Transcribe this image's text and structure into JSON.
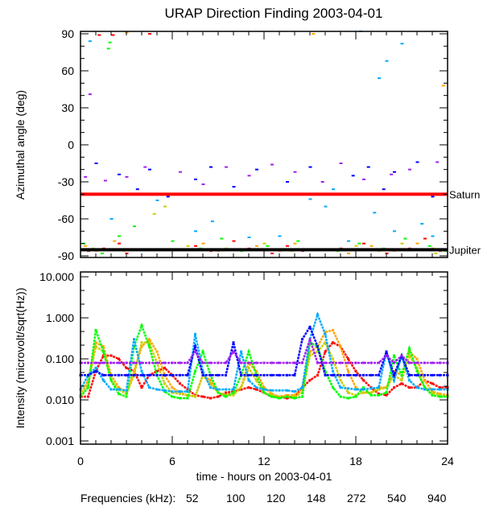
{
  "chart_data": [
    {
      "type": "scatter",
      "title": "URAP Direction Finding  2003-04-01",
      "ylabel": "Azimuthal angle (deg)",
      "ylim": [
        -90,
        90
      ],
      "xlim": [
        0,
        24
      ],
      "yticks": [
        "90",
        "60",
        "30",
        "0",
        "-30",
        "-60",
        "-90"
      ],
      "ytick_values": [
        90,
        60,
        30,
        0,
        -30,
        -60,
        -90
      ],
      "reference_lines": [
        {
          "name": "Saturn",
          "value": -40,
          "color": "#ff0000"
        },
        {
          "name": "Jupiter",
          "value": -85,
          "color": "#000000"
        }
      ],
      "series": [
        {
          "name": "52",
          "color": "#ff0000",
          "points": [
            [
              0.5,
              -86
            ],
            [
              1.5,
              -84
            ],
            [
              2.5,
              -80
            ],
            [
              3,
              -88
            ],
            [
              7.5,
              -82
            ],
            [
              8.5,
              -86
            ],
            [
              10,
              -78
            ],
            [
              11,
              -84
            ],
            [
              12.5,
              -88
            ],
            [
              13.5,
              -82
            ],
            [
              14.5,
              -86
            ],
            [
              17,
              -84
            ],
            [
              18.5,
              -80
            ],
            [
              20,
              -88
            ],
            [
              21.5,
              -84
            ],
            [
              22.5,
              -76
            ],
            [
              23.5,
              -86
            ],
            [
              1.2,
              89
            ],
            [
              2.1,
              89
            ],
            [
              4.5,
              90
            ]
          ]
        },
        {
          "name": "100",
          "color": "#ffa500",
          "points": [
            [
              0.3,
              -82
            ],
            [
              1,
              -86
            ],
            [
              2.2,
              -78
            ],
            [
              8,
              -80
            ],
            [
              9,
              -86
            ],
            [
              11.5,
              -82
            ],
            [
              13,
              -86
            ],
            [
              14,
              -80
            ],
            [
              17.5,
              -88
            ],
            [
              19,
              -82
            ],
            [
              20.5,
              -86
            ],
            [
              22,
              -80
            ],
            [
              23,
              -84
            ],
            [
              3,
              91
            ],
            [
              15.2,
              90
            ],
            [
              23.7,
              48
            ]
          ]
        },
        {
          "name": "120",
          "color": "#cccc00",
          "points": [
            [
              0.8,
              -84
            ],
            [
              2.8,
              -86
            ],
            [
              5.5,
              -50
            ],
            [
              7,
              -82
            ],
            [
              9.5,
              -84
            ],
            [
              12,
              -80
            ],
            [
              13.8,
              -86
            ],
            [
              18,
              -82
            ],
            [
              19.5,
              -86
            ],
            [
              21,
              -80
            ],
            [
              23.2,
              -88
            ],
            [
              4.8,
              -56
            ]
          ]
        },
        {
          "name": "148",
          "color": "#00ff00",
          "points": [
            [
              0.2,
              -80
            ],
            [
              1.4,
              -88
            ],
            [
              2.5,
              -74
            ],
            [
              3.5,
              -66
            ],
            [
              6,
              -78
            ],
            [
              7.8,
              -84
            ],
            [
              9.2,
              -76
            ],
            [
              10.5,
              -86
            ],
            [
              12.2,
              -82
            ],
            [
              14.2,
              -78
            ],
            [
              16.8,
              -86
            ],
            [
              18.2,
              -80
            ],
            [
              19.8,
              -84
            ],
            [
              21.2,
              -76
            ],
            [
              22.8,
              -82
            ],
            [
              23.8,
              -86
            ],
            [
              1.8,
              78
            ],
            [
              1.9,
              83
            ]
          ]
        },
        {
          "name": "272",
          "color": "#00aaff",
          "points": [
            [
              0.6,
              84
            ],
            [
              2,
              -60
            ],
            [
              3.2,
              -40
            ],
            [
              5,
              -45
            ],
            [
              7.5,
              -70
            ],
            [
              8.6,
              -62
            ],
            [
              11,
              -75
            ],
            [
              13,
              -74
            ],
            [
              15,
              -44
            ],
            [
              16,
              -50
            ],
            [
              16.5,
              -36
            ],
            [
              17.5,
              -78
            ],
            [
              19.2,
              -55
            ],
            [
              20.5,
              -70
            ],
            [
              22.3,
              -64
            ],
            [
              23,
              -74
            ],
            [
              18.3,
              92
            ],
            [
              20,
              68
            ],
            [
              21,
              82
            ],
            [
              19.5,
              54
            ]
          ]
        },
        {
          "name": "540",
          "color": "#0000ff",
          "points": [
            [
              1,
              -15
            ],
            [
              2.5,
              -24
            ],
            [
              3.7,
              -36
            ],
            [
              4.5,
              -20
            ],
            [
              5.7,
              -42
            ],
            [
              7.5,
              -28
            ],
            [
              8.5,
              -18
            ],
            [
              10,
              -34
            ],
            [
              11.5,
              -20
            ],
            [
              13.5,
              -30
            ],
            [
              15,
              -18
            ],
            [
              16.5,
              -40
            ],
            [
              17.8,
              -25
            ],
            [
              18.8,
              -18
            ],
            [
              19.8,
              -36
            ],
            [
              20.5,
              -22
            ],
            [
              22,
              -14
            ],
            [
              23,
              -42
            ]
          ]
        },
        {
          "name": "940",
          "color": "#a020f0",
          "points": [
            [
              0.3,
              -26
            ],
            [
              1.6,
              -29
            ],
            [
              3,
              -26
            ],
            [
              4.2,
              -18
            ],
            [
              6.5,
              -22
            ],
            [
              8,
              -32
            ],
            [
              9.5,
              -18
            ],
            [
              11,
              -25
            ],
            [
              12.5,
              -16
            ],
            [
              14,
              -22
            ],
            [
              15.8,
              -30
            ],
            [
              17,
              -15
            ],
            [
              18.5,
              -28
            ],
            [
              20.3,
              -24
            ],
            [
              21.5,
              -20
            ],
            [
              23.3,
              -14
            ],
            [
              0.6,
              41
            ]
          ]
        }
      ]
    },
    {
      "type": "line",
      "ylabel": "Intensity (microvolt/sqrt(Hz))",
      "yscale": "log",
      "ylim": [
        0.001,
        10
      ],
      "xlim": [
        0,
        24
      ],
      "yticks": [
        "10.000",
        "1.000",
        "0.100",
        "0.010",
        "0.001"
      ],
      "ytick_values": [
        10,
        1,
        0.1,
        0.01,
        0.001
      ],
      "xlabel": "time - hours on 2003-04-01",
      "xticks": [
        "0",
        "6",
        "12",
        "18",
        "24"
      ],
      "xtick_values": [
        0,
        6,
        12,
        18,
        24
      ],
      "x_step_hours": 0.5,
      "series": [
        {
          "name": "52",
          "color": "#ff0000",
          "values": [
            0.012,
            0.012,
            0.05,
            0.12,
            0.12,
            0.1,
            0.06,
            0.05,
            0.02,
            0.04,
            0.05,
            0.06,
            0.04,
            0.025,
            0.018,
            0.013,
            0.012,
            0.011,
            0.012,
            0.015,
            0.016,
            0.018,
            0.02,
            0.018,
            0.015,
            0.012,
            0.012,
            0.011,
            0.012,
            0.02,
            0.03,
            0.04,
            0.15,
            0.25,
            0.2,
            0.1,
            0.05,
            0.03,
            0.02,
            0.014,
            0.013,
            0.02,
            0.025,
            0.02,
            0.02,
            0.03,
            0.025,
            0.02,
            0.02
          ]
        },
        {
          "name": "100",
          "color": "#ffa500",
          "values": [
            0.013,
            0.03,
            0.25,
            0.2,
            0.04,
            0.02,
            0.015,
            0.05,
            0.2,
            0.3,
            0.15,
            0.04,
            0.02,
            0.015,
            0.013,
            0.012,
            0.04,
            0.03,
            0.015,
            0.013,
            0.015,
            0.02,
            0.08,
            0.05,
            0.02,
            0.014,
            0.012,
            0.013,
            0.013,
            0.02,
            0.15,
            0.2,
            0.45,
            0.5,
            0.2,
            0.05,
            0.02,
            0.015,
            0.015,
            0.02,
            0.02,
            0.05,
            0.04,
            0.15,
            0.1,
            0.03,
            0.016,
            0.014,
            0.013
          ]
        },
        {
          "name": "120",
          "color": "#cccc00",
          "values": [
            0.013,
            0.025,
            0.2,
            0.15,
            0.03,
            0.018,
            0.014,
            0.04,
            0.25,
            0.25,
            0.08,
            0.025,
            0.015,
            0.014,
            0.013,
            0.012,
            0.04,
            0.025,
            0.015,
            0.013,
            0.013,
            0.02,
            0.06,
            0.03,
            0.015,
            0.013,
            0.012,
            0.012,
            0.012,
            0.015,
            0.12,
            0.15,
            0.25,
            0.1,
            0.03,
            0.015,
            0.013,
            0.015,
            0.015,
            0.018,
            0.02,
            0.04,
            0.03,
            0.12,
            0.06,
            0.02,
            0.015,
            0.013,
            0.012
          ]
        },
        {
          "name": "148",
          "color": "#00ff00",
          "values": [
            0.012,
            0.02,
            0.5,
            0.15,
            0.03,
            0.014,
            0.012,
            0.2,
            0.65,
            0.2,
            0.04,
            0.016,
            0.012,
            0.011,
            0.011,
            0.05,
            0.15,
            0.04,
            0.015,
            0.012,
            0.015,
            0.04,
            0.15,
            0.04,
            0.015,
            0.012,
            0.011,
            0.012,
            0.011,
            0.012,
            0.25,
            0.2,
            0.05,
            0.02,
            0.012,
            0.011,
            0.012,
            0.02,
            0.013,
            0.013,
            0.015,
            0.12,
            0.04,
            0.18,
            0.05,
            0.02,
            0.013,
            0.012,
            0.012
          ]
        },
        {
          "name": "272",
          "color": "#00aaff",
          "values": [
            0.018,
            0.04,
            0.06,
            0.03,
            0.018,
            0.018,
            0.017,
            0.3,
            0.05,
            0.02,
            0.018,
            0.017,
            0.016,
            0.016,
            0.016,
            0.4,
            0.05,
            0.02,
            0.018,
            0.018,
            0.018,
            0.15,
            0.03,
            0.02,
            0.018,
            0.017,
            0.017,
            0.017,
            0.016,
            0.02,
            0.3,
            1.2,
            0.4,
            0.05,
            0.02,
            0.019,
            0.018,
            0.018,
            0.019,
            0.02,
            0.15,
            0.03,
            0.12,
            0.03,
            0.02,
            0.018,
            0.018,
            0.018,
            0.018
          ]
        },
        {
          "name": "540",
          "color": "#0000ff",
          "values": [
            0.04,
            0.04,
            0.05,
            0.04,
            0.04,
            0.04,
            0.04,
            0.04,
            0.04,
            0.04,
            0.04,
            0.04,
            0.04,
            0.04,
            0.04,
            0.2,
            0.04,
            0.04,
            0.04,
            0.04,
            0.25,
            0.04,
            0.04,
            0.04,
            0.04,
            0.04,
            0.04,
            0.04,
            0.04,
            0.3,
            0.6,
            0.2,
            0.04,
            0.04,
            0.04,
            0.04,
            0.04,
            0.04,
            0.04,
            0.04,
            0.15,
            0.04,
            0.12,
            0.04,
            0.04,
            0.04,
            0.04,
            0.04,
            0.04
          ]
        },
        {
          "name": "940",
          "color": "#a020f0",
          "values": [
            0.08,
            0.08,
            0.08,
            0.08,
            0.08,
            0.08,
            0.08,
            0.08,
            0.08,
            0.08,
            0.08,
            0.08,
            0.08,
            0.08,
            0.08,
            0.15,
            0.08,
            0.08,
            0.08,
            0.08,
            0.15,
            0.08,
            0.08,
            0.08,
            0.08,
            0.08,
            0.08,
            0.08,
            0.08,
            0.08,
            0.3,
            0.08,
            0.08,
            0.08,
            0.08,
            0.08,
            0.08,
            0.08,
            0.08,
            0.08,
            0.12,
            0.08,
            0.12,
            0.08,
            0.08,
            0.08,
            0.08,
            0.08,
            0.08
          ]
        }
      ]
    }
  ],
  "legend": {
    "label": "Frequencies (kHz):",
    "placement": "bottom",
    "items": [
      {
        "label": "52",
        "color": "#ff0000"
      },
      {
        "label": "100",
        "color": "#ffa500"
      },
      {
        "label": "120",
        "color": "#cccc00"
      },
      {
        "label": "148",
        "color": "#00ff00"
      },
      {
        "label": "272",
        "color": "#00aaff"
      },
      {
        "label": "540",
        "color": "#0000ff"
      },
      {
        "label": "940",
        "color": "#a020f0"
      }
    ]
  }
}
